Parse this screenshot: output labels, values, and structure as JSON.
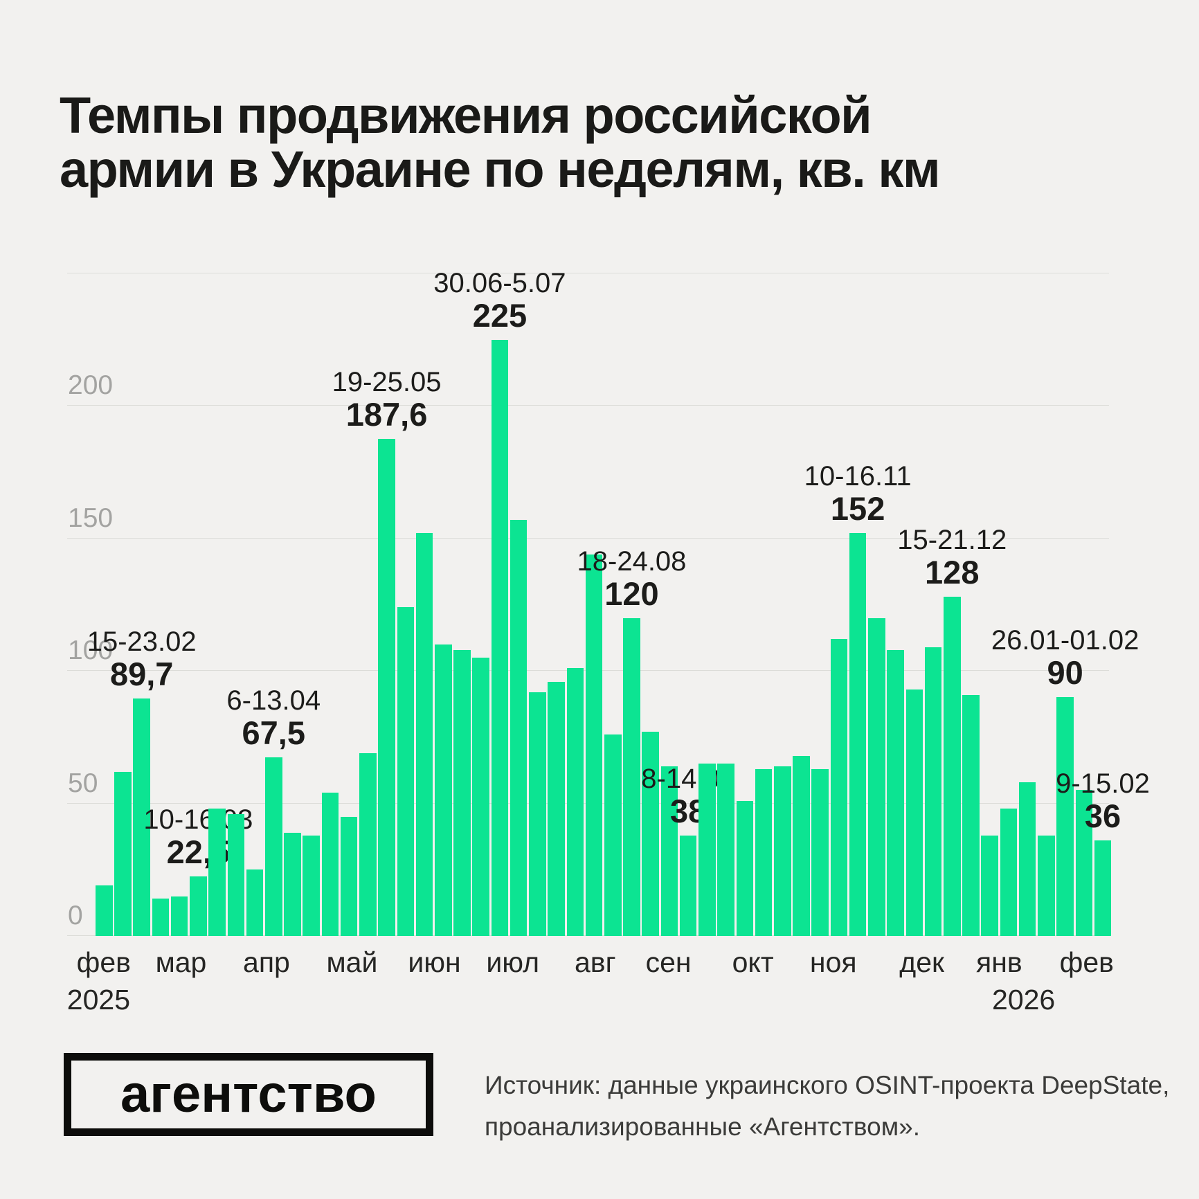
{
  "title": {
    "line1": "Темпы продвижения российской",
    "line2": "армии в Украине по неделям, кв. км"
  },
  "chart_data": {
    "type": "bar",
    "title": "Темпы продвижения российской армии в Украине по неделям, кв. км",
    "xlabel": "",
    "ylabel": "кв. км",
    "ylim": [
      0,
      250
    ],
    "yticks": [
      0,
      50,
      100,
      150,
      200
    ],
    "grid": true,
    "bar_color": "#0CE492",
    "weeks": [
      {
        "v": 19
      },
      {
        "v": 62
      },
      {
        "v": 89.7,
        "date": "15-23.02",
        "label": "89,7"
      },
      {
        "v": 14
      },
      {
        "v": 15
      },
      {
        "v": 22.5,
        "date": "10-16.03",
        "label": "22,5"
      },
      {
        "v": 48
      },
      {
        "v": 46
      },
      {
        "v": 25
      },
      {
        "v": 67.5,
        "date": "6-13.04",
        "label": "67,5"
      },
      {
        "v": 39
      },
      {
        "v": 38
      },
      {
        "v": 54
      },
      {
        "v": 45
      },
      {
        "v": 69
      },
      {
        "v": 187.6,
        "date": "19-25.05",
        "label": "187,6"
      },
      {
        "v": 124
      },
      {
        "v": 152
      },
      {
        "v": 110
      },
      {
        "v": 108
      },
      {
        "v": 105
      },
      {
        "v": 225,
        "date": "30.06-5.07",
        "label": "225"
      },
      {
        "v": 157
      },
      {
        "v": 92
      },
      {
        "v": 96
      },
      {
        "v": 101
      },
      {
        "v": 144
      },
      {
        "v": 76
      },
      {
        "v": 120,
        "date": "18-24.08",
        "label": "120"
      },
      {
        "v": 77
      },
      {
        "v": 64
      },
      {
        "v": 38,
        "date": "8-14.09",
        "label": "38"
      },
      {
        "v": 65
      },
      {
        "v": 65
      },
      {
        "v": 51
      },
      {
        "v": 63
      },
      {
        "v": 64
      },
      {
        "v": 68
      },
      {
        "v": 63
      },
      {
        "v": 112
      },
      {
        "v": 152,
        "date": "10-16.11",
        "label": "152"
      },
      {
        "v": 120
      },
      {
        "v": 108
      },
      {
        "v": 93
      },
      {
        "v": 109
      },
      {
        "v": 128,
        "date": "15-21.12",
        "label": "128"
      },
      {
        "v": 91
      },
      {
        "v": 38
      },
      {
        "v": 48
      },
      {
        "v": 58
      },
      {
        "v": 38
      },
      {
        "v": 90,
        "date": "26.01-01.02",
        "label": "90"
      },
      {
        "v": 55
      },
      {
        "v": 36,
        "date": "9-15.02",
        "label": "36"
      }
    ],
    "months": [
      {
        "label": "фев",
        "pos": 0.008
      },
      {
        "label": "мар",
        "pos": 0.084
      },
      {
        "label": "апр",
        "pos": 0.168
      },
      {
        "label": "май",
        "pos": 0.252
      },
      {
        "label": "июн",
        "pos": 0.333
      },
      {
        "label": "июл",
        "pos": 0.41
      },
      {
        "label": "авг",
        "pos": 0.491
      },
      {
        "label": "сен",
        "pos": 0.563
      },
      {
        "label": "окт",
        "pos": 0.646
      },
      {
        "label": "ноя",
        "pos": 0.725
      },
      {
        "label": "дек",
        "pos": 0.812
      },
      {
        "label": "янв",
        "pos": 0.888
      },
      {
        "label": "фев",
        "pos": 0.974
      }
    ],
    "years": [
      {
        "label": "2025",
        "pos": 0.003
      },
      {
        "label": "2026",
        "pos": 0.912
      }
    ],
    "legend": "none"
  },
  "footer": {
    "logo_text": "агентство",
    "source_line1": "Источник: данные украинского OSINT-проекта DeepState,",
    "source_line2": "проанализированные «Агентством»."
  }
}
